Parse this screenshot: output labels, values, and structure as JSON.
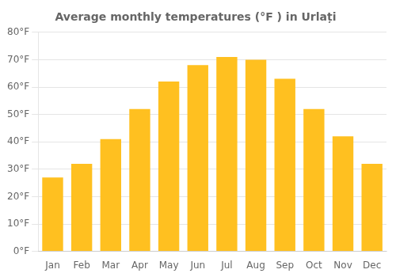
{
  "chart_data": {
    "type": "bar",
    "title": "Average monthly temperatures (°F ) in Urlați",
    "categories": [
      "Jan",
      "Feb",
      "Mar",
      "Apr",
      "May",
      "Jun",
      "Jul",
      "Aug",
      "Sep",
      "Oct",
      "Nov",
      "Dec"
    ],
    "values": [
      27,
      32,
      41,
      52,
      62,
      68,
      71,
      70,
      63,
      52,
      42,
      32
    ],
    "color": "#FFC020",
    "ylim": [
      0,
      80
    ],
    "yticks": [
      {
        "value": 0,
        "label": "0°F"
      },
      {
        "value": 10,
        "label": "10°F"
      },
      {
        "value": 20,
        "label": "20°F"
      },
      {
        "value": 30,
        "label": "30°F"
      },
      {
        "value": 40,
        "label": "40°F"
      },
      {
        "value": 50,
        "label": "50°F"
      },
      {
        "value": 60,
        "label": "60°F"
      },
      {
        "value": 70,
        "label": "70°F"
      },
      {
        "value": 80,
        "label": "80°F"
      }
    ],
    "grid": true
  }
}
